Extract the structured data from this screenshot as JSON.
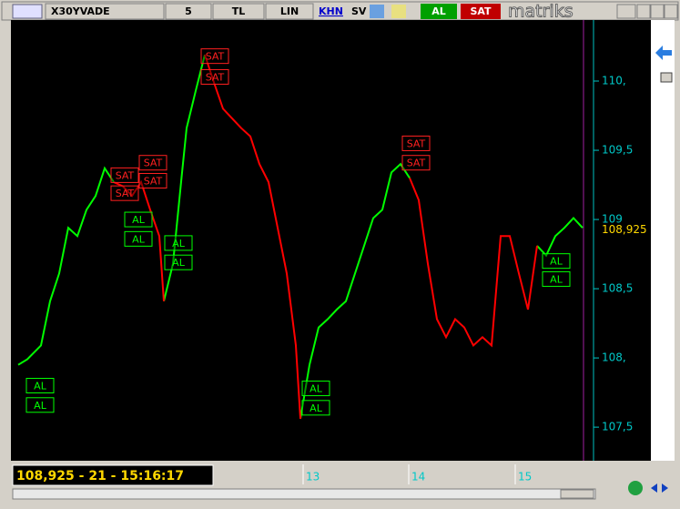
{
  "toolbar": {
    "symbol": "X30YVADE",
    "period": "5",
    "currency": "TL",
    "scale": "LIN",
    "khn": "KHN",
    "sv": "SV",
    "buy": "AL",
    "sell": "SAT",
    "brand": "matriks"
  },
  "status": "108,925 - 21 - 15:16:17",
  "chart_data": {
    "type": "line",
    "x": [
      2,
      3,
      4.5,
      5.5,
      6.5,
      7.5,
      8.5,
      9.5,
      10.5,
      11.5,
      12.5,
      13.5,
      14.5,
      15.5,
      16.5,
      17.5,
      18,
      19,
      20,
      20.5,
      21.5,
      22.5,
      23.5,
      24.5,
      25.5,
      26.5,
      27.5,
      28.5,
      29.5,
      30.5,
      31.5,
      32.5,
      33,
      34,
      35,
      36,
      37,
      38,
      39,
      40,
      41,
      42,
      43,
      44,
      45,
      46,
      47,
      48,
      49,
      50,
      51,
      52,
      53,
      54,
      55,
      56,
      57,
      58,
      59,
      60,
      61,
      62,
      63,
      64
    ],
    "xlim": [
      1.4,
      65.2
    ],
    "xticks": [
      {
        "value": 33.3,
        "label": "13"
      },
      {
        "value": 44.9,
        "label": "14"
      },
      {
        "value": 56.6,
        "label": "15"
      }
    ],
    "ylim": [
      107.31,
      110.375
    ],
    "yticks": [
      {
        "value": 107.5,
        "label": "107,5"
      },
      {
        "value": 108,
        "label": "108,"
      },
      {
        "value": 108.5,
        "label": "108,5"
      },
      {
        "value": 109,
        "label": "109"
      },
      {
        "value": 109.5,
        "label": "109,5"
      },
      {
        "value": 110,
        "label": "110,"
      }
    ],
    "series": [
      {
        "color": "#00ff00",
        "values": [
          107.95,
          107.99,
          108.09,
          108.41,
          108.61,
          108.94,
          108.88,
          109.07,
          109.17,
          109.37,
          109.27,
          null,
          null,
          null,
          null,
          null,
          108.41,
          108.68,
          109.34,
          109.66,
          109.93,
          110.19,
          null,
          null,
          null,
          null,
          null,
          null,
          null,
          null,
          null,
          null,
          107.56,
          107.95,
          108.22,
          108.28,
          108.35,
          108.41,
          108.61,
          108.81,
          109.01,
          109.07,
          109.34,
          109.4,
          109.3,
          null,
          null,
          null,
          null,
          null,
          null,
          null,
          null,
          null,
          null,
          null,
          null,
          null,
          108.81,
          108.74,
          108.88,
          108.94,
          109.01,
          108.94
        ]
      },
      {
        "color": "#ff0000",
        "values": [
          null,
          null,
          null,
          null,
          null,
          null,
          null,
          null,
          null,
          null,
          109.27,
          109.24,
          109.17,
          109.27,
          109.07,
          108.88,
          108.41,
          null,
          null,
          null,
          null,
          110.19,
          109.99,
          109.8,
          109.73,
          109.66,
          109.6,
          109.4,
          109.27,
          108.94,
          108.61,
          108.09,
          107.56,
          null,
          null,
          null,
          null,
          null,
          null,
          null,
          null,
          null,
          null,
          null,
          109.3,
          109.14,
          108.68,
          108.28,
          108.15,
          108.28,
          108.22,
          108.09,
          108.15,
          108.09,
          108.88,
          108.88,
          108.61,
          108.35,
          108.81,
          null,
          null,
          null,
          null,
          null
        ]
      }
    ],
    "signals": [
      {
        "label": "AL",
        "x": 4.4,
        "y": 107.8
      },
      {
        "label": "AL",
        "x": 4.4,
        "y": 107.66
      },
      {
        "label": "SAT",
        "x": 13.7,
        "y": 109.32
      },
      {
        "label": "SAT",
        "x": 13.7,
        "y": 109.19
      },
      {
        "label": "SAT",
        "x": 16.8,
        "y": 109.41
      },
      {
        "label": "SAT",
        "x": 16.8,
        "y": 109.28
      },
      {
        "label": "AL",
        "x": 15.2,
        "y": 109.0
      },
      {
        "label": "AL",
        "x": 15.2,
        "y": 108.86
      },
      {
        "label": "AL",
        "x": 19.6,
        "y": 108.83
      },
      {
        "label": "AL",
        "x": 19.6,
        "y": 108.69
      },
      {
        "label": "SAT",
        "x": 23.6,
        "y": 110.18
      },
      {
        "label": "SAT",
        "x": 23.6,
        "y": 110.03
      },
      {
        "label": "AL",
        "x": 34.7,
        "y": 107.78
      },
      {
        "label": "AL",
        "x": 34.7,
        "y": 107.64
      },
      {
        "label": "SAT",
        "x": 45.7,
        "y": 109.55
      },
      {
        "label": "SAT",
        "x": 45.7,
        "y": 109.41
      },
      {
        "label": "AL",
        "x": 61.1,
        "y": 108.7
      },
      {
        "label": "AL",
        "x": 61.1,
        "y": 108.57
      }
    ],
    "last_price": {
      "value": 108.925,
      "label": "108,925"
    }
  }
}
